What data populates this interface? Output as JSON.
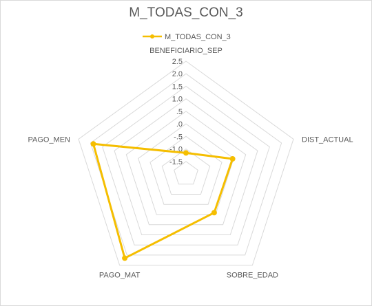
{
  "chart_data": {
    "type": "radar",
    "title": "M_TODAS_CON_3",
    "axes": [
      "BENEFICIARIO_SEP",
      "DIST_ACTUAL",
      "SOBRE_EDAD",
      "PAGO_MAT",
      "PAGO_MEN"
    ],
    "ticks": [
      2.5,
      2.0,
      1.5,
      1.0,
      0.5,
      0.0,
      -0.5,
      -1.0,
      -1.5
    ],
    "tick_labels": [
      "2.5",
      "2.0",
      "1.5",
      "1.0",
      ".5",
      ".0",
      "-.5",
      "-1.0",
      "-1.5"
    ],
    "rlim": [
      -2.0,
      2.5
    ],
    "series": [
      {
        "name": "M_TODAS_CON_3",
        "color": "#f5be00",
        "values": [
          -1.16,
          -0.05,
          -0.09,
          2.15,
          1.88
        ]
      }
    ],
    "legend_position": "top",
    "grid": true
  }
}
